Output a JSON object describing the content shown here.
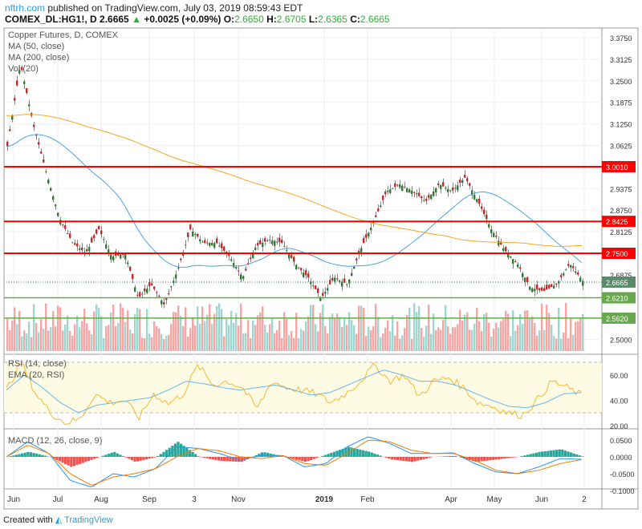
{
  "header": {
    "publisher": "nftrh.com",
    "published_text": "published on TradingView.com, July 03, 2019 08:59:43 EDT",
    "symbol": "COMEX_DL:HG1!, D",
    "last": "2.6665",
    "change": "+0.0025 (+0.09%)",
    "o_label": "O:",
    "o": "2.6650",
    "h_label": "H:",
    "h": "2.6705",
    "l_label": "L:",
    "l": "2.6365",
    "c_label": "C:",
    "c": "2.6665"
  },
  "legend": {
    "title": "Copper Futures, D, COMEX",
    "ma50": "MA (50, close)",
    "ma200": "MA (200, close)",
    "vol": "Vol (20)",
    "rsi": "RSI (14, close)",
    "ema": "EMA (20, RSI)",
    "macd": "MACD (12, 26, close, 9)"
  },
  "footer": {
    "created": "Created with",
    "brand": "TradingView"
  },
  "colors": {
    "up": "#26a69a",
    "down": "#ef5350",
    "ma50": "#4aa3df",
    "ma200": "#f5a623",
    "resistance": "#ff0000",
    "support": "#6aa84f",
    "rsi": "#f7b731",
    "rsi_ema": "#6ab7e8"
  },
  "chart_data": [
    {
      "type": "candlestick",
      "ylim": [
        2.47,
        3.4
      ],
      "y_ticks": [
        "3.3750",
        "3.3125",
        "3.2500",
        "3.1875",
        "3.1250",
        "3.0625",
        "2.9375",
        "2.8750",
        "2.8125",
        "2.6875",
        "2.5000"
      ],
      "x_ticks": [
        "Jun",
        "Jul",
        "Aug",
        "Sep",
        "3",
        "Nov",
        "2019",
        "Feb",
        "Apr",
        "May",
        "Jun",
        "2"
      ],
      "horizontal_lines": [
        {
          "value": 3.001,
          "label": "3.0010",
          "color": "#ff0000"
        },
        {
          "value": 2.8425,
          "label": "2.8425",
          "color": "#ff0000"
        },
        {
          "value": 2.75,
          "label": "2.7500",
          "color": "#ff0000"
        },
        {
          "value": 2.621,
          "label": "2.6210",
          "color": "#6aa84f"
        },
        {
          "value": 2.562,
          "label": "2.5620",
          "color": "#6aa84f"
        }
      ],
      "last_price": {
        "value": 2.6665,
        "label": "2.6665"
      },
      "close_path": [
        3.06,
        3.3,
        3.12,
        2.98,
        2.85,
        2.78,
        2.75,
        2.82,
        2.74,
        2.75,
        2.62,
        2.66,
        2.6,
        2.7,
        2.82,
        2.78,
        2.78,
        2.74,
        2.68,
        2.77,
        2.79,
        2.78,
        2.72,
        2.68,
        2.62,
        2.68,
        2.66,
        2.76,
        2.84,
        2.93,
        2.95,
        2.93,
        2.9,
        2.95,
        2.93,
        2.97,
        2.9,
        2.82,
        2.76,
        2.72,
        2.65,
        2.64,
        2.66,
        2.72,
        2.67
      ]
    },
    {
      "type": "line",
      "name": "RSI (14, close)",
      "ylim": [
        15,
        75
      ],
      "y_ticks": [
        "60.00",
        "40.00",
        "20.00"
      ],
      "bands": [
        30,
        70
      ],
      "rsi_path": [
        48,
        70,
        45,
        30,
        22,
        25,
        45,
        38,
        40,
        26,
        45,
        37,
        45,
        68,
        52,
        55,
        50,
        33,
        55,
        50,
        48,
        45,
        38,
        45,
        55,
        68,
        55,
        60,
        43,
        55,
        58,
        50,
        38,
        35,
        30,
        28,
        40,
        55,
        50,
        44
      ],
      "ema_path": [
        48,
        60,
        50,
        38,
        30,
        36,
        38,
        40,
        42,
        48,
        55,
        53,
        50,
        48,
        50,
        52,
        48,
        44,
        46,
        52,
        58,
        64,
        60,
        55,
        55,
        52,
        46,
        40,
        35,
        34,
        38,
        45,
        46
      ]
    },
    {
      "type": "line",
      "name": "MACD (12, 26, close, 9)",
      "ylim": [
        -0.11,
        0.075
      ],
      "y_ticks": [
        "0.0500",
        "0.0000",
        "-0.0500",
        "-0.1000"
      ],
      "macd_path": [
        0,
        0.045,
        0.01,
        -0.07,
        -0.09,
        -0.05,
        -0.06,
        -0.035,
        0.03,
        0.025,
        0.01,
        -0.01,
        0.005,
        0.004,
        -0.03,
        -0.02,
        0.03,
        0.06,
        0.04,
        0.01,
        0.01,
        0.012,
        -0.02,
        -0.045,
        -0.05,
        -0.03,
        -0.005,
        -0.007
      ],
      "signal_path": [
        0,
        0.035,
        0.01,
        -0.05,
        -0.085,
        -0.06,
        -0.05,
        -0.035,
        0.0,
        0.025,
        0.018,
        0.0,
        -0.005,
        0.004,
        -0.02,
        -0.025,
        0.01,
        0.05,
        0.045,
        0.02,
        0.01,
        0.01,
        -0.01,
        -0.04,
        -0.05,
        -0.04,
        -0.02,
        -0.008
      ]
    }
  ]
}
